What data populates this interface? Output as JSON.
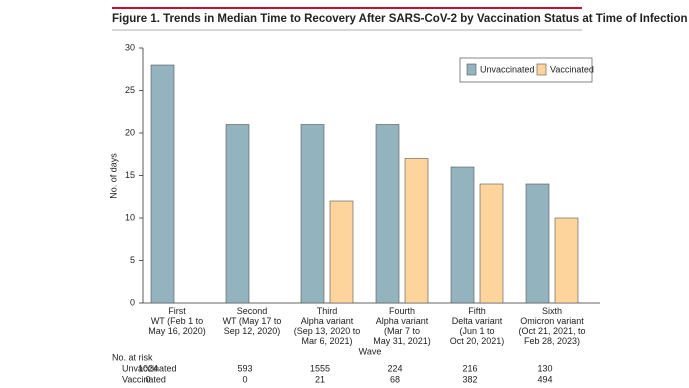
{
  "chart_data": {
    "type": "bar",
    "title": "Figure 1. Trends in Median Time to Recovery After SARS-CoV-2 by Vaccination Status at Time of Infection",
    "y_label": "No. of days",
    "x_label": "Wave",
    "categories": [
      [
        "First",
        "WT (Feb 1 to",
        "May 16, 2020)"
      ],
      [
        "Second",
        "WT (May 17 to",
        "Sep 12, 2020)"
      ],
      [
        "Third",
        "Alpha variant",
        "(Sep 13, 2020 to",
        "Mar 6, 2021)"
      ],
      [
        "Fourth",
        "Alpha variant",
        "(Mar 7 to",
        "May 31, 2021)"
      ],
      [
        "Fifth",
        "Delta variant",
        "(Jun 1 to",
        "Oct 20, 2021)"
      ],
      [
        "Sixth",
        "Omicron variant",
        "(Oct 21, 2021, to",
        "Feb 28, 2023)"
      ]
    ],
    "series": [
      {
        "name": "Unvaccinated",
        "color": "#93b3bf",
        "values": [
          28,
          21,
          21,
          21,
          16,
          14
        ]
      },
      {
        "name": "Vaccinated",
        "color": "#fdd49b",
        "values": [
          null,
          null,
          12,
          17,
          14,
          10
        ]
      }
    ],
    "ylim": [
      0,
      30
    ],
    "yticks": [
      0,
      5,
      10,
      15,
      20,
      25,
      30
    ],
    "legend": "upper right",
    "at_risk": {
      "title": "No. at risk",
      "rows": [
        {
          "name": "Unvaccinated",
          "values": [
            1024,
            593,
            1555,
            224,
            216,
            130
          ]
        },
        {
          "name": "Vaccinated",
          "values": [
            0,
            0,
            21,
            68,
            382,
            494
          ]
        }
      ]
    }
  }
}
